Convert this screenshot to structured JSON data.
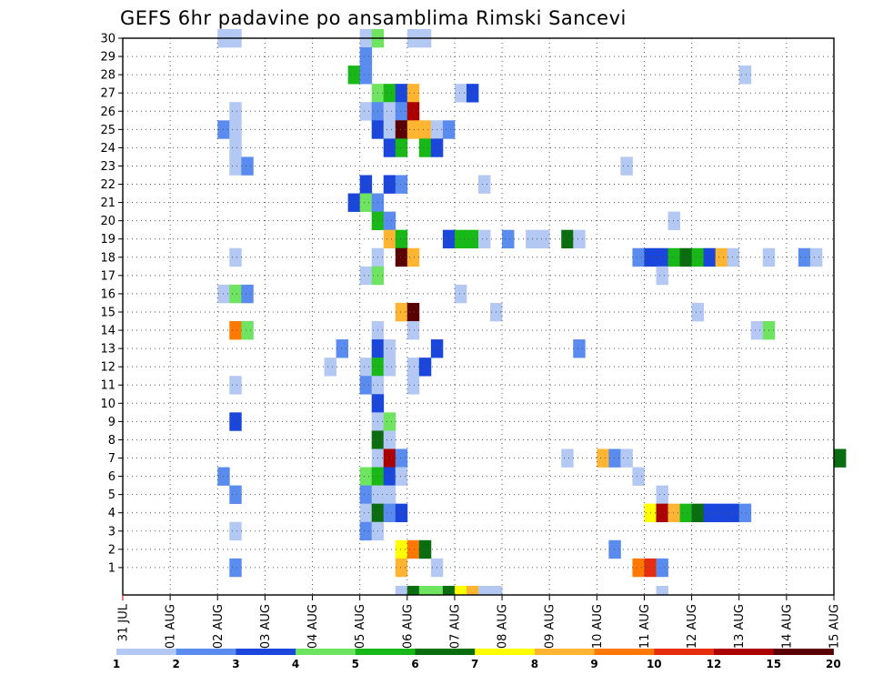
{
  "chart_data": {
    "type": "heatmap",
    "title": "GEFS 6hr padavine po ansamblima Rimski Sancevi",
    "x_tick_labels": [
      "31 JUL",
      "01 AUG",
      "02 AUG",
      "03 AUG",
      "04 AUG",
      "05 AUG",
      "06 AUG",
      "07 AUG",
      "08 AUG",
      "09 AUG",
      "10 AUG",
      "11 AUG",
      "12 AUG",
      "13 AUG",
      "14 AUG",
      "15 AUG"
    ],
    "y_range": [
      0,
      30
    ],
    "y_ticks": [
      1,
      2,
      3,
      4,
      5,
      6,
      7,
      8,
      9,
      10,
      11,
      12,
      13,
      14,
      15,
      16,
      17,
      18,
      19,
      20,
      21,
      22,
      23,
      24,
      25,
      26,
      27,
      28,
      29,
      30
    ],
    "steps_per_day": 4,
    "grid": "dotted",
    "colorbar": {
      "labels": [
        "1",
        "2",
        "3",
        "4",
        "5",
        "6",
        "7",
        "8",
        "9",
        "10",
        "12",
        "15",
        "20"
      ],
      "colors": [
        "#b4c8f4",
        "#5a8cf0",
        "#1a46dc",
        "#6ee460",
        "#18b818",
        "#0a6e10",
        "#ffff00",
        "#ffb432",
        "#ff7800",
        "#e62e0e",
        "#aa0000",
        "#5a0000"
      ]
    },
    "cells": [
      [
        30,
        8,
        0
      ],
      [
        30,
        9,
        0
      ],
      [
        30,
        20,
        0
      ],
      [
        30,
        21,
        3
      ],
      [
        30,
        24,
        0
      ],
      [
        30,
        25,
        0
      ],
      [
        29,
        20,
        1
      ],
      [
        28,
        19,
        4
      ],
      [
        28,
        20,
        1
      ],
      [
        28,
        52,
        0
      ],
      [
        27,
        21,
        3
      ],
      [
        27,
        22,
        4
      ],
      [
        27,
        23,
        2
      ],
      [
        27,
        24,
        7
      ],
      [
        27,
        28,
        0
      ],
      [
        27,
        29,
        2
      ],
      [
        26,
        9,
        0
      ],
      [
        26,
        20,
        0
      ],
      [
        26,
        21,
        1
      ],
      [
        26,
        22,
        0
      ],
      [
        26,
        23,
        1
      ],
      [
        26,
        24,
        10
      ],
      [
        25,
        8,
        1
      ],
      [
        25,
        9,
        0
      ],
      [
        25,
        21,
        2
      ],
      [
        25,
        22,
        0
      ],
      [
        25,
        23,
        11
      ],
      [
        25,
        24,
        7
      ],
      [
        25,
        25,
        7
      ],
      [
        25,
        26,
        0
      ],
      [
        25,
        27,
        1
      ],
      [
        24,
        9,
        0
      ],
      [
        24,
        22,
        2
      ],
      [
        24,
        23,
        4
      ],
      [
        24,
        25,
        4
      ],
      [
        24,
        26,
        2
      ],
      [
        23,
        9,
        0
      ],
      [
        23,
        10,
        1
      ],
      [
        23,
        42,
        0
      ],
      [
        22,
        20,
        2
      ],
      [
        22,
        22,
        2
      ],
      [
        22,
        23,
        1
      ],
      [
        22,
        30,
        0
      ],
      [
        21,
        19,
        2
      ],
      [
        21,
        20,
        3
      ],
      [
        21,
        21,
        1
      ],
      [
        20,
        21,
        4
      ],
      [
        20,
        22,
        1
      ],
      [
        20,
        46,
        0
      ],
      [
        19,
        22,
        7
      ],
      [
        19,
        23,
        4
      ],
      [
        19,
        27,
        2
      ],
      [
        19,
        28,
        4
      ],
      [
        19,
        29,
        4
      ],
      [
        19,
        30,
        0
      ],
      [
        19,
        32,
        1
      ],
      [
        19,
        34,
        0
      ],
      [
        19,
        35,
        0
      ],
      [
        19,
        37,
        5
      ],
      [
        19,
        38,
        0
      ],
      [
        18,
        9,
        0
      ],
      [
        18,
        21,
        0
      ],
      [
        18,
        23,
        11
      ],
      [
        18,
        24,
        7
      ],
      [
        18,
        43,
        1
      ],
      [
        18,
        44,
        2
      ],
      [
        18,
        45,
        2
      ],
      [
        18,
        46,
        4
      ],
      [
        18,
        47,
        5
      ],
      [
        18,
        48,
        4
      ],
      [
        18,
        49,
        2
      ],
      [
        18,
        50,
        7
      ],
      [
        18,
        51,
        0
      ],
      [
        18,
        54,
        0
      ],
      [
        18,
        57,
        1
      ],
      [
        18,
        58,
        0
      ],
      [
        17,
        20,
        0
      ],
      [
        17,
        21,
        3
      ],
      [
        17,
        45,
        0
      ],
      [
        16,
        8,
        0
      ],
      [
        16,
        9,
        3
      ],
      [
        16,
        10,
        1
      ],
      [
        16,
        28,
        0
      ],
      [
        15,
        23,
        7
      ],
      [
        15,
        24,
        11
      ],
      [
        15,
        31,
        0
      ],
      [
        15,
        48,
        0
      ],
      [
        14,
        9,
        8
      ],
      [
        14,
        10,
        3
      ],
      [
        14,
        21,
        0
      ],
      [
        14,
        24,
        0
      ],
      [
        14,
        53,
        0
      ],
      [
        14,
        54,
        3
      ],
      [
        13,
        18,
        1
      ],
      [
        13,
        21,
        2
      ],
      [
        13,
        22,
        0
      ],
      [
        13,
        26,
        2
      ],
      [
        13,
        38,
        1
      ],
      [
        12,
        17,
        0
      ],
      [
        12,
        20,
        0
      ],
      [
        12,
        21,
        4
      ],
      [
        12,
        22,
        0
      ],
      [
        12,
        24,
        0
      ],
      [
        12,
        25,
        2
      ],
      [
        11,
        9,
        0
      ],
      [
        11,
        20,
        1
      ],
      [
        11,
        21,
        0
      ],
      [
        11,
        24,
        0
      ],
      [
        10,
        21,
        2
      ],
      [
        9,
        9,
        2
      ],
      [
        9,
        21,
        0
      ],
      [
        9,
        22,
        3
      ],
      [
        8,
        21,
        5
      ],
      [
        8,
        22,
        0
      ],
      [
        7,
        21,
        0
      ],
      [
        7,
        22,
        10
      ],
      [
        7,
        23,
        1
      ],
      [
        7,
        37,
        0
      ],
      [
        7,
        40,
        7
      ],
      [
        7,
        41,
        1
      ],
      [
        7,
        42,
        0
      ],
      [
        7,
        60,
        5
      ],
      [
        6,
        8,
        1
      ],
      [
        6,
        20,
        3
      ],
      [
        6,
        21,
        4
      ],
      [
        6,
        22,
        2
      ],
      [
        6,
        23,
        0
      ],
      [
        6,
        43,
        0
      ],
      [
        5,
        9,
        1
      ],
      [
        5,
        20,
        1
      ],
      [
        5,
        21,
        0
      ],
      [
        5,
        22,
        0
      ],
      [
        5,
        45,
        0
      ],
      [
        4,
        20,
        0
      ],
      [
        4,
        21,
        5
      ],
      [
        4,
        22,
        1
      ],
      [
        4,
        23,
        2
      ],
      [
        4,
        44,
        6
      ],
      [
        4,
        45,
        10
      ],
      [
        4,
        46,
        7
      ],
      [
        4,
        47,
        4
      ],
      [
        4,
        48,
        5
      ],
      [
        4,
        49,
        2
      ],
      [
        4,
        50,
        2
      ],
      [
        4,
        51,
        2
      ],
      [
        4,
        52,
        1
      ],
      [
        3,
        9,
        0
      ],
      [
        3,
        20,
        1
      ],
      [
        3,
        21,
        0
      ],
      [
        2,
        23,
        6
      ],
      [
        2,
        24,
        8
      ],
      [
        2,
        25,
        5
      ],
      [
        2,
        41,
        1
      ],
      [
        1,
        9,
        1
      ],
      [
        1,
        23,
        7
      ],
      [
        1,
        26,
        0
      ],
      [
        1,
        43,
        8
      ],
      [
        1,
        44,
        9
      ],
      [
        1,
        45,
        1
      ],
      [
        0,
        23,
        0
      ],
      [
        0,
        24,
        5
      ],
      [
        0,
        25,
        3
      ],
      [
        0,
        26,
        3
      ],
      [
        0,
        27,
        5
      ],
      [
        0,
        28,
        6
      ],
      [
        0,
        29,
        7
      ],
      [
        0,
        30,
        0
      ],
      [
        0,
        31,
        0
      ],
      [
        0,
        45,
        0
      ]
    ]
  }
}
